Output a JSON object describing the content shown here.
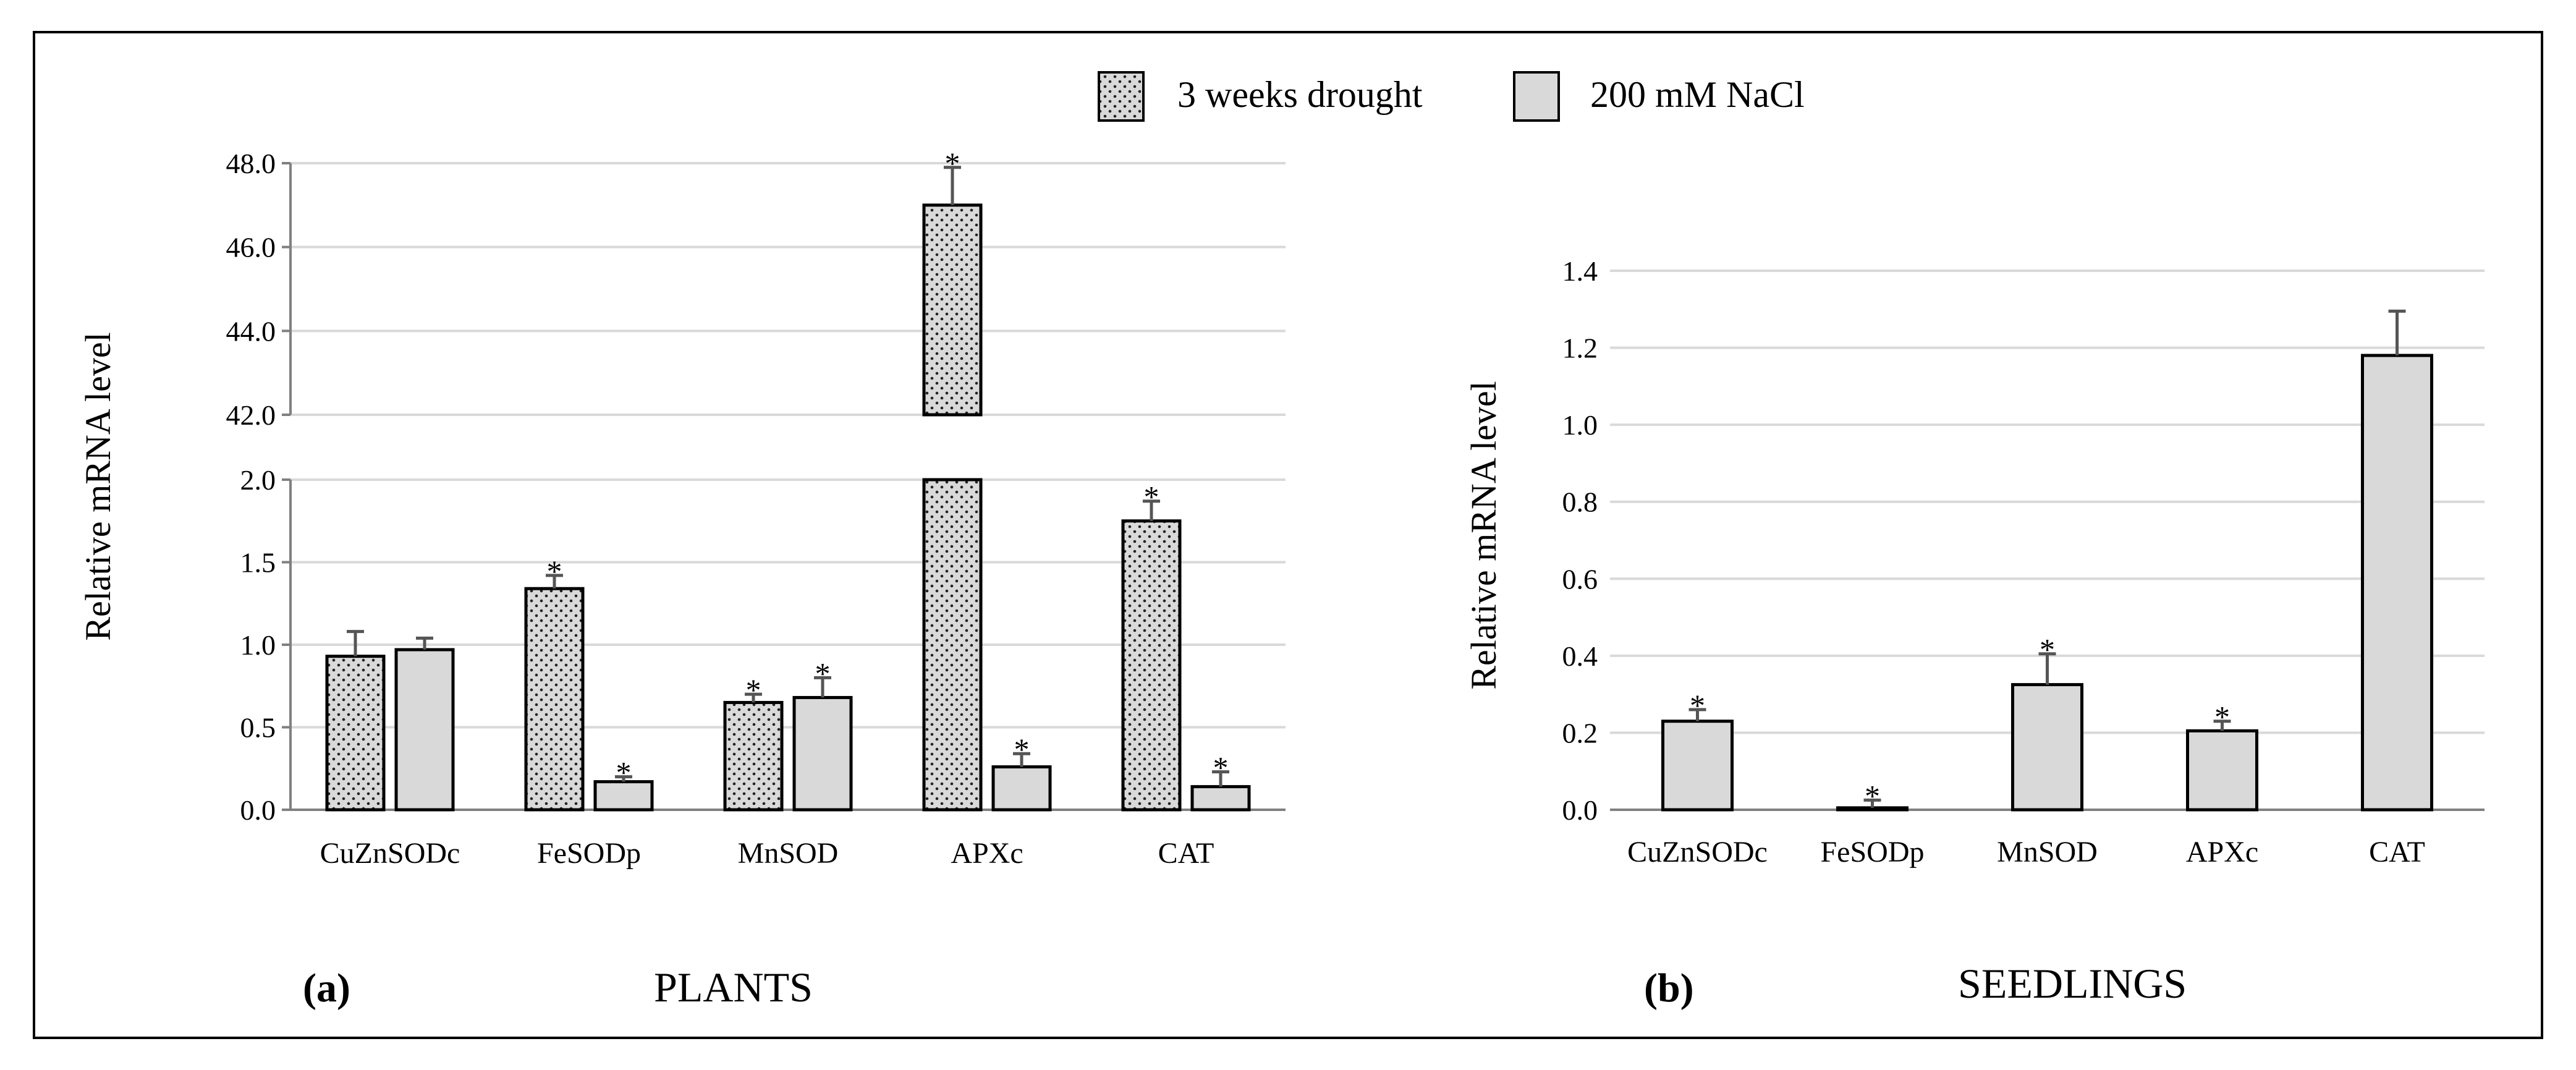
{
  "legend": {
    "drought_label": "3 weeks drought",
    "nacl_label": "200 mM NaCl"
  },
  "colors": {
    "bar_fill": "#d9d9d9",
    "dot": "#222222",
    "outline": "#000000",
    "grid": "#d9d9d9",
    "frame": "#000000"
  },
  "chart_data": [
    {
      "type": "bar",
      "panel_label": "(a)",
      "title": "PLANTS",
      "ylabel": "Relative mRNA level",
      "xlabel": "",
      "categories": [
        "CuZnSODc",
        "FeSODp",
        "MnSOD",
        "APXc",
        "CAT"
      ],
      "series": [
        {
          "name": "3 weeks drought",
          "pattern": "dotted",
          "values": [
            0.93,
            1.34,
            0.65,
            47.0,
            1.75
          ],
          "errors": [
            0.15,
            0.08,
            0.05,
            0.9,
            0.12
          ],
          "significant": [
            false,
            true,
            true,
            true,
            true
          ]
        },
        {
          "name": "200 mM NaCl",
          "pattern": "solid",
          "values": [
            0.97,
            0.17,
            0.68,
            0.26,
            0.14
          ],
          "errors": [
            0.07,
            0.03,
            0.12,
            0.08,
            0.09
          ],
          "significant": [
            false,
            true,
            true,
            true,
            true
          ]
        }
      ],
      "broken_axis": {
        "lower": {
          "ylim": [
            0.0,
            2.0
          ],
          "ticks": [
            "0.0",
            "0.5",
            "1.0",
            "1.5",
            "2.0"
          ]
        },
        "upper": {
          "ylim": [
            42.0,
            48.0
          ],
          "ticks": [
            "42.0",
            "44.0",
            "46.0",
            "48.0"
          ]
        }
      },
      "grid": true,
      "significance_marker": "*"
    },
    {
      "type": "bar",
      "panel_label": "(b)",
      "title": "SEEDLINGS",
      "ylabel": "Relative mRNA level",
      "xlabel": "",
      "categories": [
        "CuZnSODc",
        "FeSODp",
        "MnSOD",
        "APXc",
        "CAT"
      ],
      "series": [
        {
          "name": "200 mM NaCl",
          "pattern": "solid",
          "values": [
            0.23,
            0.005,
            0.325,
            0.205,
            1.18
          ],
          "errors": [
            0.03,
            0.02,
            0.08,
            0.025,
            0.115
          ],
          "significant": [
            true,
            true,
            true,
            true,
            false
          ]
        }
      ],
      "ylim": [
        0.0,
        1.4
      ],
      "ticks": [
        "0.0",
        "0.2",
        "0.4",
        "0.6",
        "0.8",
        "1.0",
        "1.2",
        "1.4"
      ],
      "grid": true,
      "significance_marker": "*"
    }
  ]
}
